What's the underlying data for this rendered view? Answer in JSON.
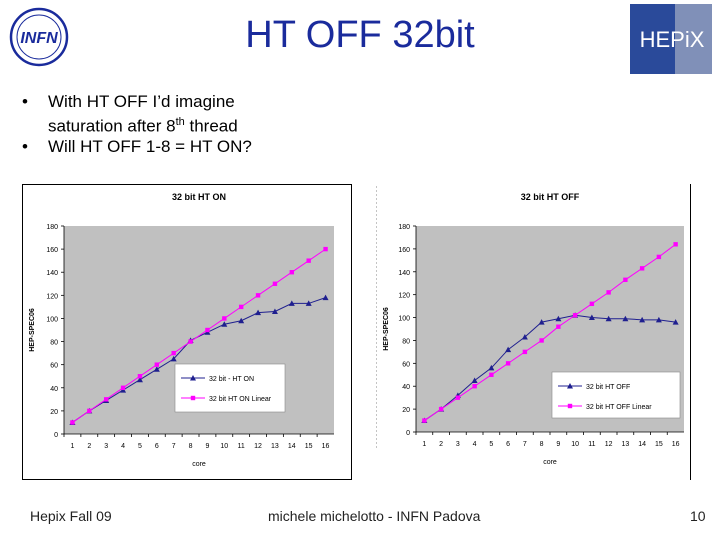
{
  "slide": {
    "title": "HT OFF 32bit",
    "logo_left": {
      "text": "INFN",
      "icon": "infn-logo-icon"
    },
    "logo_right": {
      "text": "HEPiX",
      "icon": "hepix-logo-icon"
    },
    "bullets": [
      {
        "line1": "With HT OFF I’d imagine",
        "line2_pre": "saturation after 8",
        "line2_sup": "th",
        "line2_post": " thread"
      },
      {
        "line1": "Will HT OFF 1-8 = HT ON?"
      }
    ],
    "footer_left": "Hepix Fall 09",
    "footer_center": "michele michelotto - INFN Padova",
    "footer_right": "10"
  },
  "colors": {
    "title": "#1a2b9c",
    "plot_bg": "#c0c0c0",
    "series_ht": "#1f1f8f",
    "series_linear": "#ff00ff"
  },
  "chart_data": [
    {
      "type": "line",
      "title": "32 bit HT ON",
      "xlabel": "core",
      "ylabel": "HEP-SPEC06",
      "ylim": [
        0,
        180
      ],
      "yticks": [
        0,
        20,
        40,
        60,
        80,
        100,
        120,
        140,
        160,
        180
      ],
      "x": [
        1,
        2,
        3,
        4,
        5,
        6,
        7,
        8,
        9,
        10,
        11,
        12,
        13,
        14,
        15,
        16
      ],
      "grid": false,
      "legend": "center-right",
      "series": [
        {
          "name": "32 bit - HT ON",
          "marker": "triangle",
          "color": "#1f1f8f",
          "values": [
            10,
            20,
            29,
            38,
            47,
            56,
            65,
            81,
            88,
            95,
            98,
            105,
            106,
            113,
            113,
            118
          ]
        },
        {
          "name": "32 bit HT ON Linear",
          "marker": "square",
          "color": "#ff00ff",
          "values": [
            10,
            20,
            30,
            40,
            50,
            60,
            70,
            80,
            90,
            100,
            110,
            120,
            130,
            140,
            150,
            160
          ]
        }
      ]
    },
    {
      "type": "line",
      "title": "32 bit HT OFF",
      "xlabel": "core",
      "ylabel": "HEP-SPEC06",
      "ylim": [
        0,
        180
      ],
      "yticks": [
        0,
        20,
        40,
        60,
        80,
        100,
        120,
        140,
        160,
        180
      ],
      "x": [
        1,
        2,
        3,
        4,
        5,
        6,
        7,
        8,
        9,
        10,
        11,
        12,
        13,
        14,
        15,
        16
      ],
      "grid": false,
      "legend": "bottom-right",
      "series": [
        {
          "name": "32 bit HT OFF",
          "marker": "triangle",
          "color": "#1f1f8f",
          "values": [
            10,
            20,
            32,
            45,
            56,
            72,
            83,
            96,
            99,
            102,
            100,
            99,
            99,
            98,
            98,
            96
          ]
        },
        {
          "name": "32 bit HT OFF Linear",
          "marker": "square",
          "color": "#ff00ff",
          "values": [
            10,
            20,
            30,
            40,
            50,
            60,
            70,
            80,
            92,
            102,
            112,
            122,
            133,
            143,
            153,
            164
          ]
        }
      ]
    }
  ]
}
